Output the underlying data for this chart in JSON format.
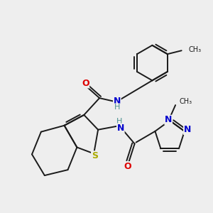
{
  "bg_color": "#eeeeee",
  "bond_color": "#1a1a1a",
  "atom_colors": {
    "O": "#dd0000",
    "N": "#0000cc",
    "S": "#aaaa00",
    "H": "#4a9090",
    "C": "#1a1a1a"
  },
  "lw": 1.4
}
